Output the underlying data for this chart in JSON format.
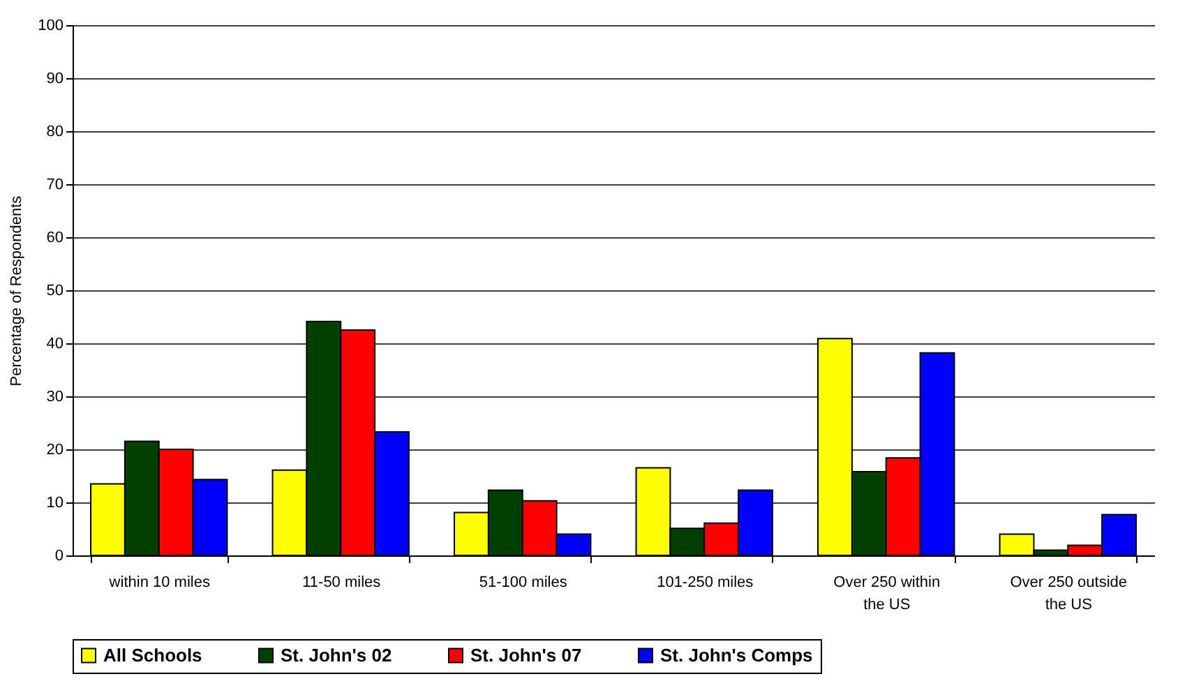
{
  "chart_data": {
    "type": "bar",
    "ylabel": "Percentage of Respondents",
    "categories": [
      "within 10 miles",
      "11-50 miles",
      "51-100 miles",
      "101-250 miles",
      "Over 250 within the US",
      "Over 250 outside the US"
    ],
    "series": [
      {
        "name": "All Schools",
        "color": "#ffff00",
        "values": [
          13.5,
          16.1,
          8.1,
          16.5,
          40.9,
          4.0
        ]
      },
      {
        "name": "St. John's 02",
        "color": "#004000",
        "values": [
          21.5,
          44.1,
          12.3,
          5.1,
          15.8,
          1.0
        ]
      },
      {
        "name": "St. John's 07",
        "color": "#ff0000",
        "values": [
          20.0,
          42.5,
          10.3,
          6.1,
          18.4,
          1.9
        ]
      },
      {
        "name": "St. John's Comps",
        "color": "#0000ff",
        "values": [
          14.3,
          23.3,
          4.0,
          12.3,
          38.2,
          7.7
        ]
      }
    ],
    "ylim": [
      0,
      100
    ],
    "yticks": [
      0,
      10,
      20,
      30,
      40,
      50,
      60,
      70,
      80,
      90,
      100
    ],
    "grid": "y",
    "legend": "bottom"
  }
}
